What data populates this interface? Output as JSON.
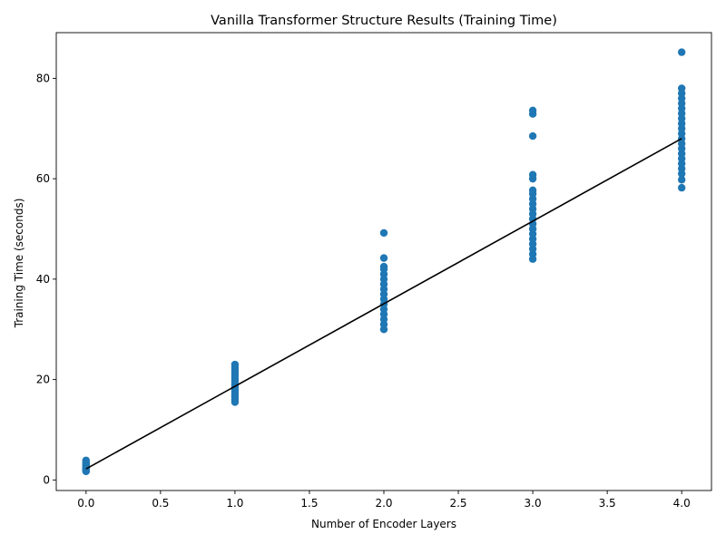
{
  "chart_data": {
    "type": "scatter",
    "title": "Vanilla Transformer Structure Results (Training Time)",
    "xlabel": "Number of Encoder Layers",
    "ylabel": "Training Time (seconds)",
    "xlim": [
      -0.2,
      4.2
    ],
    "ylim": [
      -2.1,
      89.1
    ],
    "xticks": [
      0.0,
      0.5,
      1.0,
      1.5,
      2.0,
      2.5,
      3.0,
      3.5,
      4.0
    ],
    "xtick_labels": [
      "0.0",
      "0.5",
      "1.0",
      "1.5",
      "2.0",
      "2.5",
      "3.0",
      "3.5",
      "4.0"
    ],
    "yticks": [
      0,
      20,
      40,
      60,
      80
    ],
    "ytick_labels": [
      "0",
      "20",
      "40",
      "60",
      "80"
    ],
    "grid": false,
    "colors": {
      "points": "#1f77b4",
      "fit_line": "#000000"
    },
    "series": [
      {
        "type": "scatter",
        "points": [
          [
            0,
            1.7
          ],
          [
            0,
            1.9
          ],
          [
            0,
            2.0
          ],
          [
            0,
            2.1
          ],
          [
            0,
            2.2
          ],
          [
            0,
            2.3
          ],
          [
            0,
            2.5
          ],
          [
            0,
            2.7
          ],
          [
            0,
            2.9
          ],
          [
            0,
            3.1
          ],
          [
            0,
            3.3
          ],
          [
            0,
            3.6
          ],
          [
            0,
            3.9
          ],
          [
            1,
            15.5
          ],
          [
            1,
            16.0
          ],
          [
            1,
            16.5
          ],
          [
            1,
            17.0
          ],
          [
            1,
            17.5
          ],
          [
            1,
            18.0
          ],
          [
            1,
            18.5
          ],
          [
            1,
            19.0
          ],
          [
            1,
            19.5
          ],
          [
            1,
            20.0
          ],
          [
            1,
            20.5
          ],
          [
            1,
            21.0
          ],
          [
            1,
            21.5
          ],
          [
            1,
            22.0
          ],
          [
            1,
            22.5
          ],
          [
            1,
            23.0
          ],
          [
            2,
            30.0
          ],
          [
            2,
            31.0
          ],
          [
            2,
            32.0
          ],
          [
            2,
            33.0
          ],
          [
            2,
            34.0
          ],
          [
            2,
            35.0
          ],
          [
            2,
            36.0
          ],
          [
            2,
            37.0
          ],
          [
            2,
            38.0
          ],
          [
            2,
            39.0
          ],
          [
            2,
            40.0
          ],
          [
            2,
            41.0
          ],
          [
            2,
            42.0
          ],
          [
            2,
            42.5
          ],
          [
            2,
            44.2
          ],
          [
            2,
            49.2
          ],
          [
            3,
            44.0
          ],
          [
            3,
            45.0
          ],
          [
            3,
            46.0
          ],
          [
            3,
            47.0
          ],
          [
            3,
            48.0
          ],
          [
            3,
            49.0
          ],
          [
            3,
            50.0
          ],
          [
            3,
            51.0
          ],
          [
            3,
            52.0
          ],
          [
            3,
            53.0
          ],
          [
            3,
            54.0
          ],
          [
            3,
            55.0
          ],
          [
            3,
            56.0
          ],
          [
            3,
            57.0
          ],
          [
            3,
            57.7
          ],
          [
            3,
            60.0
          ],
          [
            3,
            60.8
          ],
          [
            3,
            68.5
          ],
          [
            3,
            72.9
          ],
          [
            3,
            73.6
          ],
          [
            4,
            58.2
          ],
          [
            4,
            59.8
          ],
          [
            4,
            61.0
          ],
          [
            4,
            62.0
          ],
          [
            4,
            63.0
          ],
          [
            4,
            64.0
          ],
          [
            4,
            65.0
          ],
          [
            4,
            66.0
          ],
          [
            4,
            67.0
          ],
          [
            4,
            68.0
          ],
          [
            4,
            69.0
          ],
          [
            4,
            70.0
          ],
          [
            4,
            71.0
          ],
          [
            4,
            72.0
          ],
          [
            4,
            73.0
          ],
          [
            4,
            74.0
          ],
          [
            4,
            75.0
          ],
          [
            4,
            76.0
          ],
          [
            4,
            77.0
          ],
          [
            4,
            78.0
          ],
          [
            4,
            85.2
          ]
        ]
      },
      {
        "type": "line",
        "points": [
          [
            0,
            2.2
          ],
          [
            4,
            68.0
          ]
        ]
      }
    ]
  }
}
